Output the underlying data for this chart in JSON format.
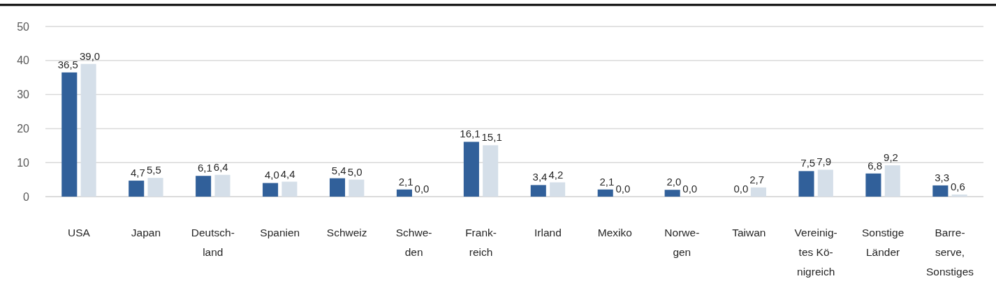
{
  "chart_data": {
    "type": "bar",
    "categories": [
      "USA",
      "Japan",
      "Deutsch-\nland",
      "Spanien",
      "Schweiz",
      "Schwe-\nden",
      "Frank-\nreich",
      "Irland",
      "Mexiko",
      "Norwe-\ngen",
      "Taiwan",
      "Vereinig-\ntes Kö-\nnigreich",
      "Sonstige\nLänder",
      "Barre-\nserve,\nSonstiges"
    ],
    "series": [
      {
        "color": "#31609a",
        "values": [
          36.5,
          4.7,
          6.1,
          4.0,
          5.4,
          2.1,
          16.1,
          3.4,
          2.1,
          2.0,
          0.0,
          7.5,
          6.8,
          3.3
        ],
        "value_labels": [
          "36,5",
          "4,7",
          "6,1",
          "4,0",
          "5,4",
          "2,1",
          "16,1",
          "3,4",
          "2,1",
          "2,0",
          "0,0",
          "7,5",
          "6,8",
          "3,3"
        ]
      },
      {
        "color": "#d5dfe9",
        "values": [
          39.0,
          5.5,
          6.4,
          4.4,
          5.0,
          0.0,
          15.1,
          4.2,
          0.0,
          0.0,
          2.7,
          7.9,
          9.2,
          0.6
        ],
        "value_labels": [
          "39,0",
          "5,5",
          "6,4",
          "4,4",
          "5,0",
          "0,0",
          "15,1",
          "4,2",
          "0,0",
          "0,0",
          "2,7",
          "7,9",
          "9,2",
          "0,6"
        ]
      }
    ],
    "ylim": [
      0,
      50
    ],
    "yticks": [
      0,
      10,
      20,
      30,
      40,
      50
    ],
    "grid": "y"
  }
}
